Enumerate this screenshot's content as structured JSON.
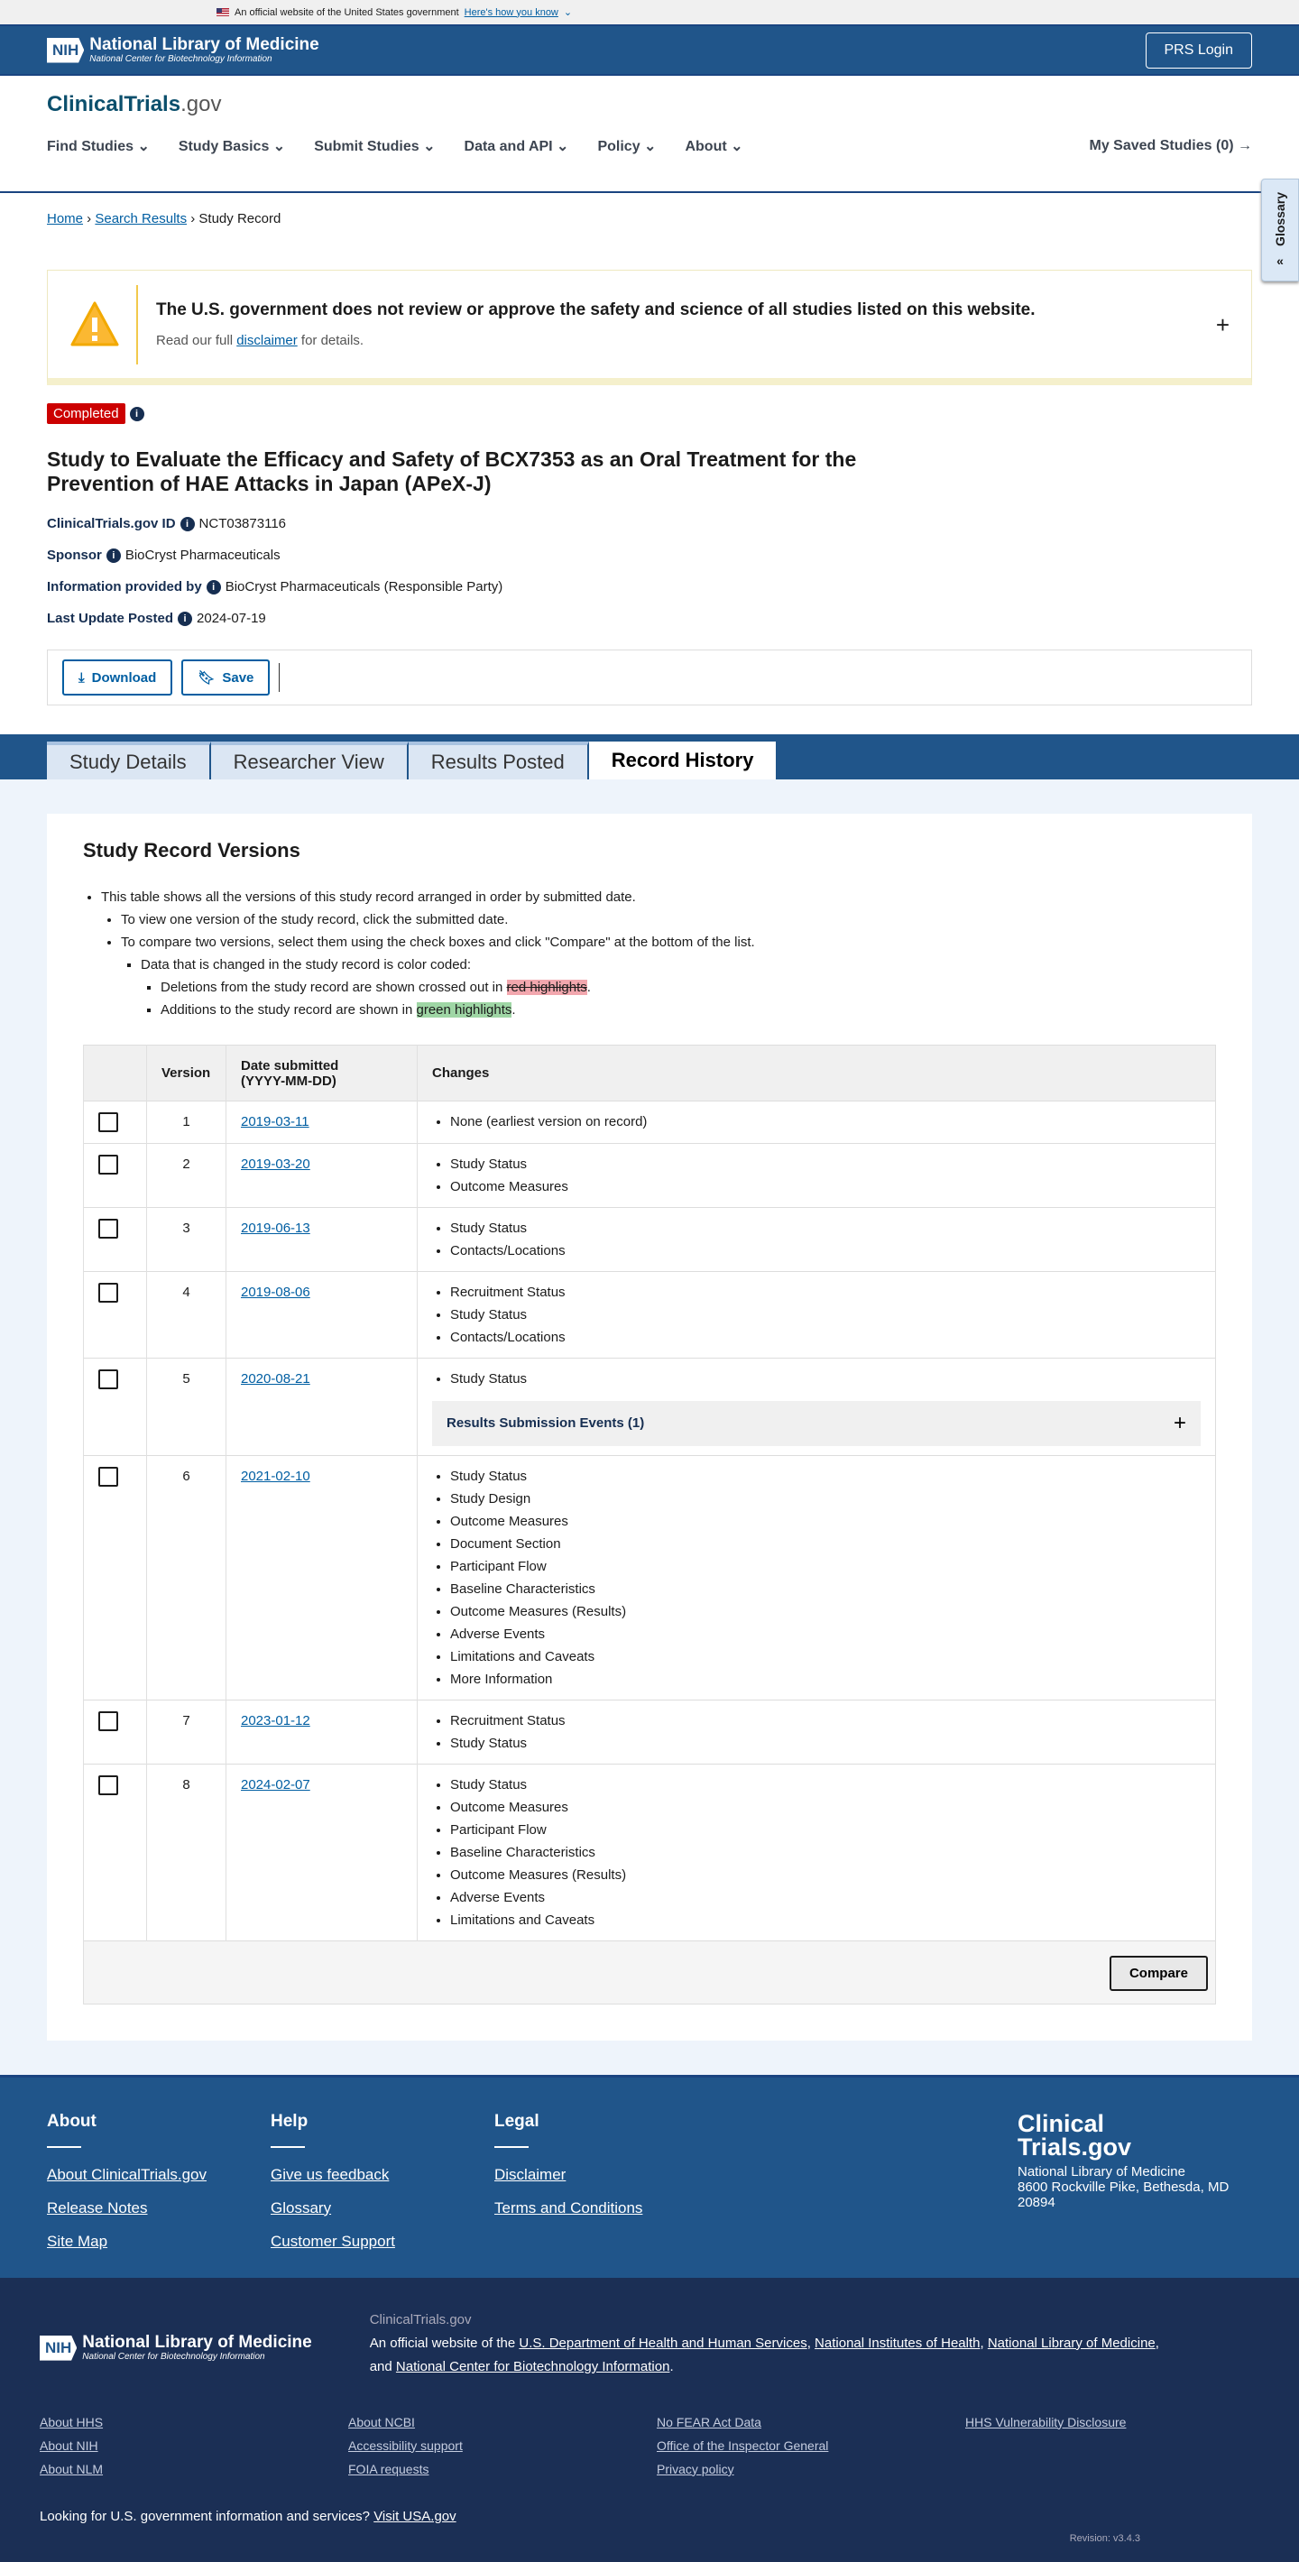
{
  "gov_banner": {
    "text": "An official website of the United States government",
    "link": "Here's how you know"
  },
  "header": {
    "nih": "NIH",
    "org": "National Library of Medicine",
    "sub": "National Center for Biotechnology Information",
    "prs_login": "PRS Login"
  },
  "brand": {
    "logo_main": "ClinicalTrials",
    "logo_suffix": ".gov"
  },
  "nav": {
    "items": [
      "Find Studies",
      "Study Basics",
      "Submit Studies",
      "Data and API",
      "Policy",
      "About"
    ],
    "saved": "My Saved Studies (0)"
  },
  "breadcrumb": [
    "Home",
    "Search Results",
    "Study Record"
  ],
  "glossary": "Glossary",
  "alert": {
    "title": "The U.S. government does not review or approve the safety and science of all studies listed on this website.",
    "pre": "Read our full ",
    "link": "disclaimer",
    "post": " for details."
  },
  "study": {
    "status": "Completed",
    "title": "Study to Evaluate the Efficacy and Safety of BCX7353 as an Oral Treatment for the Prevention of HAE Attacks in Japan (APeX-J)",
    "fields": [
      {
        "label": "ClinicalTrials.gov ID",
        "value": "NCT03873116"
      },
      {
        "label": "Sponsor",
        "value": "BioCryst Pharmaceuticals"
      },
      {
        "label": "Information provided by",
        "value": "BioCryst Pharmaceuticals (Responsible Party)"
      },
      {
        "label": "Last Update Posted",
        "value": "2024-07-19"
      }
    ]
  },
  "actions": {
    "download": "Download",
    "save": "Save"
  },
  "tabs": [
    "Study Details",
    "Researcher View",
    "Results Posted",
    "Record History"
  ],
  "versions": {
    "heading": "Study Record Versions",
    "intro": "This table shows all the versions of this study record arranged in order by submitted date.",
    "view": "To view one version of the study record, click the submitted date.",
    "compare": "To compare two versions, select them using the check boxes and click \"Compare\" at the bottom of the list.",
    "coded": "Data that is changed in the study record is color coded:",
    "del_pre": "Deletions from the study record are shown crossed out in ",
    "del_hl": "red highlights",
    "del_post": ".",
    "add_pre": "Additions to the study record are shown in ",
    "add_hl": "green highlights",
    "add_post": ".",
    "columns": [
      "Version",
      "Date submitted",
      "(YYYY-MM-DD)",
      "Changes"
    ],
    "rows": [
      {
        "version": "1",
        "date": "2019-03-11",
        "changes": [
          "None (earliest version on record)"
        ]
      },
      {
        "version": "2",
        "date": "2019-03-20",
        "changes": [
          "Study Status",
          "Outcome Measures"
        ]
      },
      {
        "version": "3",
        "date": "2019-06-13",
        "changes": [
          "Study Status",
          "Contacts/Locations"
        ]
      },
      {
        "version": "4",
        "date": "2019-08-06",
        "changes": [
          "Recruitment Status",
          "Study Status",
          "Contacts/Locations"
        ]
      },
      {
        "version": "5",
        "date": "2020-08-21",
        "changes": [
          "Study Status"
        ],
        "events": "Results Submission Events (1)"
      },
      {
        "version": "6",
        "date": "2021-02-10",
        "changes": [
          "Study Status",
          "Study Design",
          "Outcome Measures",
          "Document Section",
          "Participant Flow",
          "Baseline Characteristics",
          "Outcome Measures (Results)",
          "Adverse Events",
          "Limitations and Caveats",
          "More Information"
        ]
      },
      {
        "version": "7",
        "date": "2023-01-12",
        "changes": [
          "Recruitment Status",
          "Study Status"
        ]
      },
      {
        "version": "8",
        "date": "2024-02-07",
        "changes": [
          "Study Status",
          "Outcome Measures",
          "Participant Flow",
          "Baseline Characteristics",
          "Outcome Measures (Results)",
          "Adverse Events",
          "Limitations and Caveats"
        ]
      }
    ],
    "compare_button": "Compare"
  },
  "footer": {
    "cols": [
      {
        "title": "About",
        "links": [
          "About ClinicalTrials.gov",
          "Release Notes",
          "Site Map"
        ]
      },
      {
        "title": "Help",
        "links": [
          "Give us feedback",
          "Glossary",
          "Customer Support"
        ]
      },
      {
        "title": "Legal",
        "links": [
          "Disclaimer",
          "Terms and Conditions"
        ]
      }
    ],
    "brand_line1": "Clinical",
    "brand_line2": "Trials.gov",
    "address": [
      "National Library of Medicine",
      "8600 Rockville Pike, Bethesda, MD 20894"
    ],
    "site": "ClinicalTrials.gov",
    "official_pre": "An official website of the ",
    "agencies": [
      "U.S. Department of Health and Human Services",
      "National Institutes of Health",
      "National Library of Medicine",
      "National Center for Biotechnology Information"
    ],
    "links": [
      "About HHS",
      "About NCBI",
      "No FEAR Act Data",
      "HHS Vulnerability Disclosure",
      "About NIH",
      "Accessibility support",
      "Office of the Inspector General",
      "",
      "About NLM",
      "FOIA requests",
      "Privacy policy",
      ""
    ],
    "usa_q": "Looking for U.S. government information and services?",
    "usa_link": "Visit USA.gov",
    "revision": "Revision: v3.4.3"
  }
}
